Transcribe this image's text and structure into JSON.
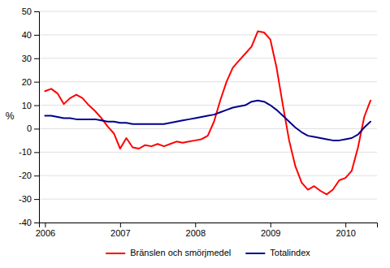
{
  "chart_data": {
    "type": "line",
    "ylabel": "%",
    "xlim": [
      2005.92,
      2010.42
    ],
    "xticks": [
      2006,
      2007,
      2008,
      2009,
      2010
    ],
    "ylim": [
      -40,
      50
    ],
    "yticks": [
      -40,
      -30,
      -20,
      -10,
      0,
      10,
      20,
      30,
      40,
      50
    ],
    "grid": "y",
    "legend": "bottom",
    "x": [
      2006.0,
      2006.083,
      2006.167,
      2006.25,
      2006.333,
      2006.417,
      2006.5,
      2006.583,
      2006.667,
      2006.75,
      2006.833,
      2006.917,
      2007.0,
      2007.083,
      2007.167,
      2007.25,
      2007.333,
      2007.417,
      2007.5,
      2007.583,
      2007.667,
      2007.75,
      2007.833,
      2007.917,
      2008.0,
      2008.083,
      2008.167,
      2008.25,
      2008.333,
      2008.417,
      2008.5,
      2008.583,
      2008.667,
      2008.75,
      2008.833,
      2008.917,
      2009.0,
      2009.083,
      2009.167,
      2009.25,
      2009.333,
      2009.417,
      2009.5,
      2009.583,
      2009.667,
      2009.75,
      2009.833,
      2009.917,
      2010.0,
      2010.083,
      2010.167,
      2010.25,
      2010.333
    ],
    "series": [
      {
        "name": "Bränslen och smörjmedel",
        "color": "#ff0000",
        "values": [
          16.0,
          17.0,
          15.0,
          10.5,
          13.0,
          14.5,
          13.0,
          10.0,
          7.5,
          4.5,
          1.0,
          -2.0,
          -8.5,
          -4.0,
          -8.0,
          -8.5,
          -7.0,
          -7.5,
          -6.5,
          -7.5,
          -6.5,
          -5.5,
          -6.0,
          -5.5,
          -5.0,
          -4.5,
          -3.0,
          3.0,
          12.0,
          20.0,
          26.0,
          29.0,
          32.0,
          35.0,
          41.5,
          41.0,
          38.0,
          26.0,
          10.0,
          -5.0,
          -16.0,
          -23.0,
          -26.0,
          -24.5,
          -26.5,
          -28.0,
          -26.0,
          -22.0,
          -21.0,
          -18.0,
          -8.0,
          5.0,
          12.0
        ]
      },
      {
        "name": "Totalindex",
        "color": "#00008b",
        "values": [
          5.5,
          5.5,
          5.0,
          4.5,
          4.5,
          4.0,
          4.0,
          4.0,
          4.0,
          3.5,
          3.0,
          3.0,
          2.5,
          2.5,
          2.0,
          2.0,
          2.0,
          2.0,
          2.0,
          2.0,
          2.5,
          3.0,
          3.5,
          4.0,
          4.5,
          5.0,
          5.5,
          6.0,
          7.0,
          8.0,
          9.0,
          9.5,
          10.0,
          11.5,
          12.0,
          11.5,
          10.0,
          8.0,
          5.5,
          3.0,
          0.5,
          -1.5,
          -3.0,
          -3.5,
          -4.0,
          -4.5,
          -5.0,
          -5.0,
          -4.5,
          -4.0,
          -2.5,
          0.5,
          3.0
        ]
      }
    ]
  }
}
